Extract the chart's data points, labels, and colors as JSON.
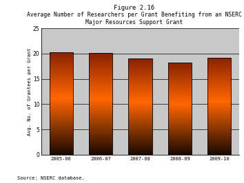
{
  "title_line1": "Figure 2.16",
  "title_line2": "Average Number of Researchers per Grant Benefiting from an NSERC",
  "title_line3": "Major Resources Support Grant",
  "categories": [
    "2005-06",
    "2006-07",
    "2007-08",
    "2008-09",
    "2009-10"
  ],
  "values": [
    20.3,
    20.1,
    19.0,
    18.2,
    19.2
  ],
  "ylabel": "Avg. No. of Grantees per Grant",
  "ylim": [
    0,
    25
  ],
  "yticks": [
    0,
    5,
    10,
    15,
    20,
    25
  ],
  "source": "Source: NSERC database.",
  "bar_color_bottom": "#1a0800",
  "bar_color_mid": "#ff6600",
  "bar_color_top": "#7a2000",
  "background_color": "#ffffff",
  "plot_bg_above": "#c8c8c8",
  "plot_bg_below": "#ffffff",
  "grid_color": "#000000",
  "bar_edge_color": "#000000",
  "bar_width": 0.6
}
